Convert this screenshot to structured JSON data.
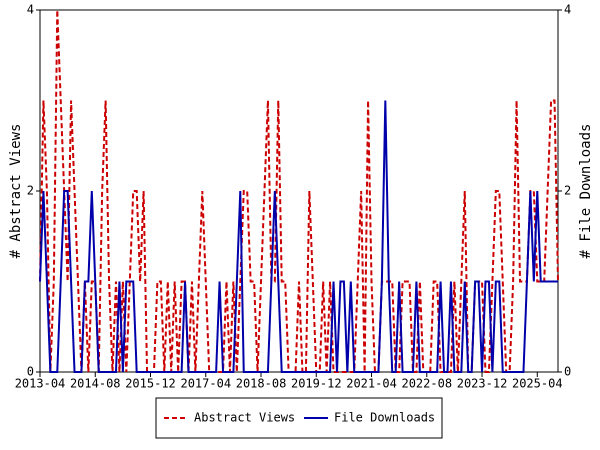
{
  "chart_data": {
    "type": "line",
    "x": [
      "2013-04",
      "2013-05",
      "2013-06",
      "2013-07",
      "2013-08",
      "2013-09",
      "2013-10",
      "2013-11",
      "2013-12",
      "2014-01",
      "2014-02",
      "2014-03",
      "2014-04",
      "2014-05",
      "2014-06",
      "2014-07",
      "2014-08",
      "2014-09",
      "2014-10",
      "2014-11",
      "2014-12",
      "2015-01",
      "2015-02",
      "2015-03",
      "2015-04",
      "2015-05",
      "2015-06",
      "2015-07",
      "2015-08",
      "2015-09",
      "2015-10",
      "2015-11",
      "2015-12",
      "2016-01",
      "2016-02",
      "2016-03",
      "2016-04",
      "2016-05",
      "2016-06",
      "2016-07",
      "2016-08",
      "2016-09",
      "2016-10",
      "2016-11",
      "2016-12",
      "2017-01",
      "2017-02",
      "2017-03",
      "2017-04",
      "2017-05",
      "2017-06",
      "2017-07",
      "2017-08",
      "2017-09",
      "2017-10",
      "2017-11",
      "2017-12",
      "2018-01",
      "2018-02",
      "2018-03",
      "2018-04",
      "2018-05",
      "2018-06",
      "2018-07",
      "2018-08",
      "2018-09",
      "2018-10",
      "2018-11",
      "2018-12",
      "2019-01",
      "2019-02",
      "2019-03",
      "2019-04",
      "2019-05",
      "2019-06",
      "2019-07",
      "2019-08",
      "2019-09",
      "2019-10",
      "2019-11",
      "2019-12",
      "2020-01",
      "2020-02",
      "2020-03",
      "2020-04",
      "2020-05",
      "2020-06",
      "2020-07",
      "2020-08",
      "2020-09",
      "2020-10",
      "2020-11",
      "2020-12",
      "2021-01",
      "2021-02",
      "2021-03",
      "2021-04",
      "2021-05",
      "2021-06",
      "2021-07",
      "2021-08",
      "2021-09",
      "2021-10",
      "2021-11",
      "2021-12",
      "2022-01",
      "2022-02",
      "2022-03",
      "2022-04",
      "2022-05",
      "2022-06",
      "2022-07",
      "2022-08",
      "2022-09",
      "2022-10",
      "2022-11",
      "2022-12",
      "2023-01",
      "2023-02",
      "2023-03",
      "2023-04",
      "2023-05",
      "2023-06",
      "2023-07",
      "2023-08",
      "2023-09",
      "2023-10",
      "2023-11",
      "2023-12",
      "2024-01",
      "2024-02",
      "2024-03",
      "2024-04",
      "2024-05",
      "2024-06",
      "2024-07",
      "2024-08",
      "2024-09",
      "2024-10",
      "2024-11",
      "2024-12",
      "2025-01",
      "2025-02",
      "2025-03",
      "2025-04",
      "2025-05",
      "2025-06",
      "2025-07",
      "2025-08",
      "2025-09",
      "2025-10"
    ],
    "xticks": [
      "2013-04",
      "2014-08",
      "2015-12",
      "2017-04",
      "2018-08",
      "2019-12",
      "2021-04",
      "2022-08",
      "2023-12",
      "2025-04"
    ],
    "series": [
      {
        "name": "Abstract Views",
        "color": "#cc0000",
        "dash": true,
        "values": [
          1,
          3,
          2,
          0,
          1,
          4,
          3,
          2,
          1,
          3,
          2,
          1,
          0,
          1,
          0,
          1,
          1,
          0,
          2,
          3,
          1,
          0,
          1,
          0,
          1,
          0,
          1,
          2,
          2,
          1,
          2,
          0,
          0,
          0,
          1,
          1,
          0,
          1,
          0,
          1,
          0,
          1,
          1,
          0,
          1,
          0,
          1,
          2,
          1,
          0,
          0,
          0,
          0,
          0,
          1,
          0,
          1,
          0,
          1,
          2,
          2,
          1,
          1,
          0,
          1,
          2,
          3,
          1,
          1,
          3,
          1,
          1,
          0,
          0,
          0,
          1,
          0,
          0,
          2,
          1,
          0,
          0,
          1,
          0,
          1,
          0,
          0,
          0,
          0,
          0,
          0,
          0,
          1,
          2,
          0,
          3,
          1,
          0,
          0,
          1,
          1,
          1,
          1,
          0,
          0,
          1,
          1,
          1,
          0,
          0,
          1,
          0,
          0,
          0,
          1,
          1,
          0,
          0,
          0,
          0,
          1,
          0,
          1,
          2,
          0,
          0,
          1,
          1,
          1,
          0,
          0,
          1,
          2,
          2,
          1,
          0,
          0,
          1,
          3,
          1,
          1,
          1,
          2,
          2,
          1,
          1,
          1,
          2,
          3,
          3,
          1
        ]
      },
      {
        "name": "File Downloads",
        "color": "#0000aa",
        "dash": false,
        "axis": "y2",
        "values": [
          1,
          2,
          1,
          0,
          0,
          0,
          1,
          2,
          2,
          1,
          0,
          0,
          0,
          1,
          1,
          2,
          1,
          0,
          0,
          0,
          0,
          0,
          0,
          1,
          0,
          1,
          1,
          1,
          0,
          0,
          0,
          0,
          0,
          0,
          0,
          0,
          0,
          0,
          0,
          0,
          0,
          0,
          1,
          0,
          0,
          0,
          0,
          0,
          0,
          0,
          0,
          0,
          1,
          0,
          0,
          0,
          0,
          1,
          2,
          0,
          0,
          0,
          0,
          0,
          0,
          0,
          0,
          1,
          2,
          1,
          0,
          0,
          0,
          0,
          0,
          0,
          0,
          0,
          0,
          0,
          0,
          0,
          0,
          0,
          0,
          1,
          0,
          1,
          1,
          0,
          1,
          0,
          0,
          0,
          0,
          0,
          0,
          0,
          0,
          1,
          3,
          1,
          0,
          0,
          1,
          0,
          0,
          0,
          0,
          1,
          0,
          0,
          0,
          0,
          0,
          0,
          1,
          0,
          0,
          1,
          0,
          0,
          0,
          1,
          0,
          0,
          1,
          1,
          0,
          1,
          1,
          0,
          1,
          1,
          0,
          0,
          0,
          0,
          0,
          0,
          0,
          1,
          2,
          1,
          2,
          1,
          1,
          1,
          1,
          1,
          1
        ]
      }
    ],
    "ylabel": "# Abstract Views",
    "y2label": "# File Downloads",
    "ylim": [
      0,
      4
    ],
    "yticks": [
      0,
      2,
      4
    ],
    "y2lim": [
      0,
      4
    ],
    "y2ticks": [
      0,
      2,
      4
    ],
    "legend": "bottom"
  }
}
